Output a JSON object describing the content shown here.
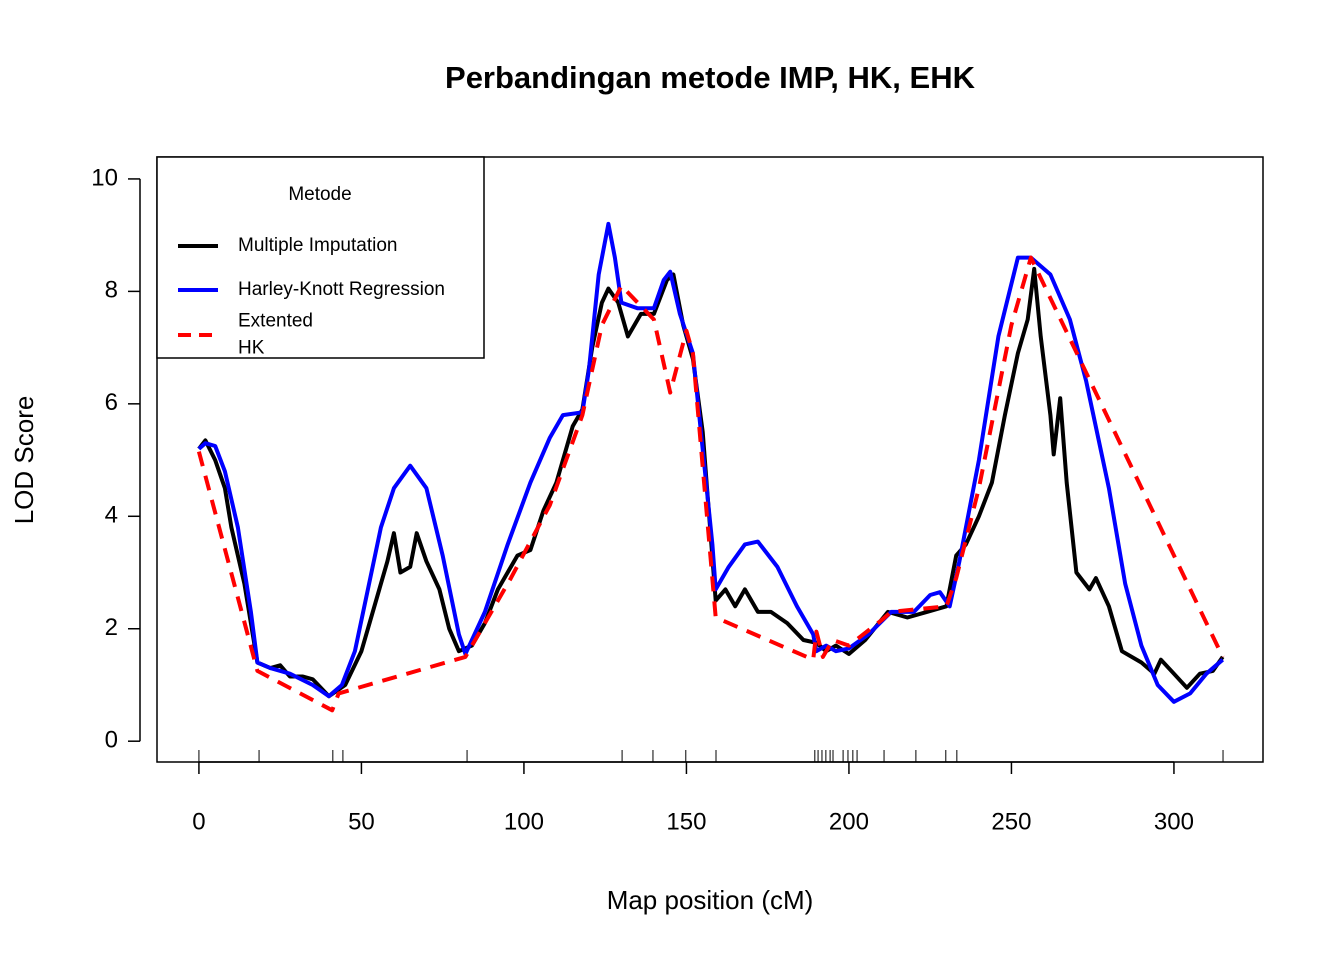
{
  "chart_data": {
    "type": "line",
    "title": "Perbandingan metode IMP, HK, EHK",
    "x_label": "Map position (cM)",
    "y_label": "LOD Score",
    "legend_title": "Metode",
    "legend_position": "topleft",
    "xlim": [
      -12.9,
      327.4
    ],
    "ylim": [
      -0.37,
      10.39
    ],
    "xticks": [
      0,
      50,
      100,
      150,
      200,
      250,
      300
    ],
    "yticks": [
      0,
      2,
      4,
      6,
      8,
      10
    ],
    "markers": [
      0,
      18.5,
      41.2,
      44.3,
      82.5,
      130.2,
      139.7,
      149.8,
      159.1,
      189.5,
      190.5,
      191.7,
      192.9,
      194.2,
      195.1,
      198.2,
      199.7,
      201.2,
      202.5,
      210.8,
      220.6,
      229.8,
      233.2,
      315.1
    ],
    "series": [
      {
        "name": "Multiple Imputation",
        "color": "#000000",
        "dashed": false,
        "x": [
          0,
          2,
          5,
          8,
          10,
          14,
          18,
          22,
          25,
          28,
          32,
          35,
          40,
          45,
          50,
          54,
          58,
          60,
          62,
          65,
          67,
          70,
          74,
          77,
          80,
          84,
          88,
          92,
          98,
          102,
          106,
          110,
          115,
          118,
          121,
          124,
          126,
          129,
          132,
          136,
          140,
          144,
          146,
          149,
          152,
          155,
          159,
          162,
          165,
          168,
          172,
          176,
          181,
          186,
          190,
          193,
          196,
          200,
          205,
          212,
          218,
          224,
          230,
          233,
          236,
          240,
          244,
          248,
          252,
          255,
          257,
          259,
          262,
          263,
          265,
          267,
          270,
          274,
          276,
          280,
          284,
          290,
          294,
          296,
          300,
          304,
          308,
          312,
          315
        ],
        "values": [
          5.2,
          5.35,
          5.0,
          4.5,
          3.8,
          2.8,
          1.4,
          1.3,
          1.35,
          1.15,
          1.15,
          1.1,
          0.8,
          1.0,
          1.6,
          2.4,
          3.2,
          3.7,
          3.0,
          3.1,
          3.7,
          3.2,
          2.7,
          2.0,
          1.6,
          1.7,
          2.1,
          2.7,
          3.3,
          3.4,
          4.1,
          4.6,
          5.6,
          5.9,
          7.0,
          7.8,
          8.05,
          7.8,
          7.2,
          7.6,
          7.6,
          8.2,
          8.3,
          7.4,
          6.8,
          5.5,
          2.5,
          2.7,
          2.4,
          2.7,
          2.3,
          2.3,
          2.1,
          1.8,
          1.75,
          1.6,
          1.7,
          1.55,
          1.8,
          2.3,
          2.2,
          2.3,
          2.4,
          3.3,
          3.5,
          4.0,
          4.6,
          5.8,
          6.9,
          7.5,
          8.4,
          7.2,
          5.8,
          5.1,
          6.1,
          4.6,
          3.0,
          2.7,
          2.9,
          2.4,
          1.6,
          1.4,
          1.2,
          1.45,
          1.2,
          0.95,
          1.2,
          1.25,
          1.5
        ]
      },
      {
        "name": "Harley-Knott Regression",
        "color": "#0000ff",
        "dashed": false,
        "x": [
          0,
          2,
          5,
          8,
          12,
          16,
          18,
          22,
          28,
          35,
          40,
          44,
          48,
          52,
          56,
          60,
          65,
          70,
          75,
          80,
          82,
          88,
          95,
          102,
          108,
          112,
          118,
          120,
          123,
          126,
          128,
          130,
          135,
          140,
          143,
          145,
          148,
          152,
          158,
          159,
          163,
          168,
          172,
          178,
          184,
          189,
          190,
          193,
          196,
          200,
          206,
          213,
          220,
          225,
          228,
          231,
          234,
          240,
          246,
          252,
          256,
          262,
          268,
          273,
          280,
          285,
          290,
          295,
          300,
          305,
          310,
          315
        ],
        "values": [
          5.2,
          5.3,
          5.25,
          4.8,
          3.8,
          2.3,
          1.4,
          1.3,
          1.2,
          1.0,
          0.8,
          1.0,
          1.6,
          2.7,
          3.8,
          4.5,
          4.9,
          4.5,
          3.3,
          1.9,
          1.55,
          2.3,
          3.5,
          4.6,
          5.4,
          5.8,
          5.85,
          6.6,
          8.3,
          9.2,
          8.6,
          7.8,
          7.7,
          7.7,
          8.2,
          8.35,
          7.6,
          6.9,
          3.5,
          2.7,
          3.1,
          3.5,
          3.55,
          3.1,
          2.4,
          1.9,
          1.6,
          1.7,
          1.6,
          1.65,
          1.9,
          2.3,
          2.3,
          2.6,
          2.65,
          2.4,
          3.2,
          5.0,
          7.2,
          8.6,
          8.6,
          8.3,
          7.5,
          6.4,
          4.5,
          2.8,
          1.7,
          1.0,
          0.7,
          0.85,
          1.2,
          1.45
        ]
      },
      {
        "name": "Extented\nHK",
        "color": "#ff0000",
        "dashed": true,
        "x": [
          0,
          18,
          41,
          43,
          82,
          96,
          108,
          118,
          124,
          130,
          140,
          145,
          150,
          152,
          159,
          189,
          190,
          192,
          195,
          200,
          210,
          213,
          230,
          233,
          240,
          250,
          256,
          315
        ],
        "values": [
          5.15,
          1.25,
          0.55,
          0.85,
          1.5,
          2.9,
          4.2,
          5.8,
          7.4,
          8.1,
          7.5,
          6.2,
          7.3,
          6.9,
          2.2,
          1.45,
          1.95,
          1.5,
          1.8,
          1.7,
          2.15,
          2.3,
          2.4,
          2.9,
          4.5,
          7.4,
          8.6,
          1.5
        ]
      }
    ]
  }
}
